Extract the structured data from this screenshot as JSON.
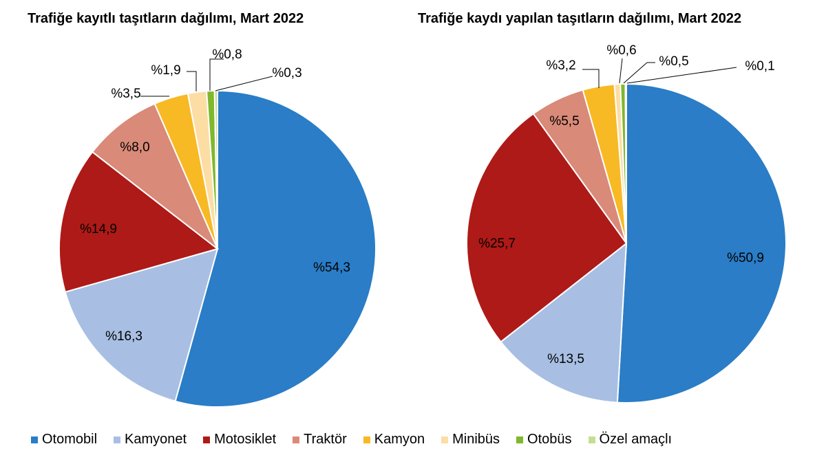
{
  "chart_data": [
    {
      "type": "pie",
      "title": "Trafiğe kayıtlı taşıtların dağılımı, Mart 2022",
      "categories": [
        "Otomobil",
        "Kamyonet",
        "Motosiklet",
        "Traktör",
        "Kamyon",
        "Minibüs",
        "Otobüs",
        "Özel amaçlı"
      ],
      "values": [
        54.3,
        16.3,
        14.9,
        8.0,
        3.5,
        1.9,
        0.8,
        0.3
      ],
      "labels": [
        "%54,3",
        "%16,3",
        "%14,9",
        "%8,0",
        "%3,5",
        "%1,9",
        "%0,8",
        "%0,3"
      ]
    },
    {
      "type": "pie",
      "title": "Trafiğe kaydı yapılan taşıtların dağılımı, Mart 2022",
      "categories": [
        "Otomobil",
        "Kamyonet",
        "Motosiklet",
        "Traktör",
        "Kamyon",
        "Minibüs",
        "Otobüs",
        "Özel amaçlı"
      ],
      "values": [
        50.9,
        13.5,
        25.7,
        5.5,
        3.2,
        0.6,
        0.5,
        0.1
      ],
      "labels": [
        "%50,9",
        "%13,5",
        "%25,7",
        "%5,5",
        "%3,2",
        "%0,6",
        "%0,5",
        "%0,1"
      ]
    }
  ],
  "legend": {
    "items": [
      {
        "label": "Otomobil",
        "color": "#2A7DC6"
      },
      {
        "label": "Kamyonet",
        "color": "#A8BFE3"
      },
      {
        "label": "Motosiklet",
        "color": "#AE1A17"
      },
      {
        "label": "Traktör",
        "color": "#D98A78"
      },
      {
        "label": "Kamyon",
        "color": "#F7B924"
      },
      {
        "label": "Minibüs",
        "color": "#FCDDA4"
      },
      {
        "label": "Otobüs",
        "color": "#7FB82C"
      },
      {
        "label": "Özel amaçlı",
        "color": "#C6DE93"
      }
    ]
  }
}
